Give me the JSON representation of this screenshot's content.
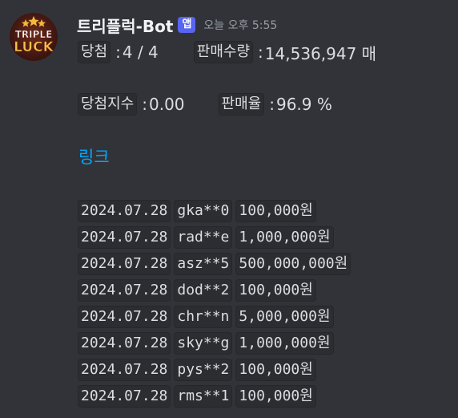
{
  "message": {
    "username": "트리플럭-Bot",
    "app_badge": "앱",
    "timestamp": "오늘 오후 5:55",
    "avatar_text_line1": "TRIPLE",
    "avatar_text_line2": "LUCK",
    "stats": {
      "win_label": "당첨",
      "win_value": "4 / 4",
      "sales_label": "판매수량",
      "sales_value": "14,536,947 매",
      "win_index_label": "당첨지수",
      "win_index_value": "0.00",
      "sales_rate_label": "판매율",
      "sales_rate_value": "96.9 %"
    },
    "separator": ":",
    "link_text": "링크",
    "entries": [
      {
        "date": "2024.07.28",
        "user": "gka**0",
        "amount": "100,000원"
      },
      {
        "date": "2024.07.28",
        "user": "rad**e",
        "amount": "1,000,000원"
      },
      {
        "date": "2024.07.28",
        "user": "asz**5",
        "amount": "500,000,000원"
      },
      {
        "date": "2024.07.28",
        "user": "dod**2",
        "amount": "100,000원"
      },
      {
        "date": "2024.07.28",
        "user": "chr**n",
        "amount": "5,000,000원"
      },
      {
        "date": "2024.07.28",
        "user": "sky**g",
        "amount": "1,000,000원"
      },
      {
        "date": "2024.07.28",
        "user": "pys**2",
        "amount": "100,000원"
      },
      {
        "date": "2024.07.28",
        "user": "rms**1",
        "amount": "100,000원"
      }
    ]
  },
  "colors": {
    "background": "#323339",
    "link": "#00a8fc",
    "badge": "#5865f2",
    "code_background": "#2b2d31"
  }
}
